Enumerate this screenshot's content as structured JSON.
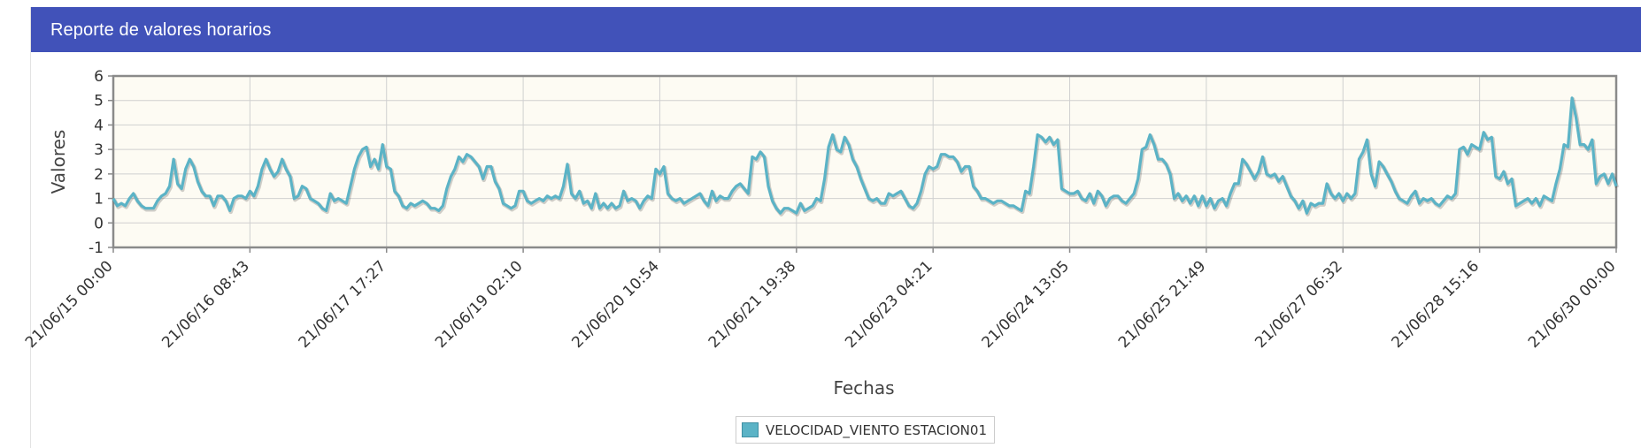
{
  "panel": {
    "title": "Reporte de valores horarios"
  },
  "colors": {
    "header": "#4152b9",
    "series": "#5bb3c6",
    "plot_background": "#fdfbf3",
    "grid": "#d0d0d0"
  },
  "chart_data": {
    "type": "line",
    "xlabel": "Fechas",
    "ylabel": "Valores",
    "ylim": [
      -1,
      6
    ],
    "yticks": [
      -1,
      0,
      1,
      2,
      3,
      4,
      5,
      6
    ],
    "x_tick_labels": [
      "21/06/15 00:00",
      "21/06/16 08:43",
      "21/06/17 17:27",
      "21/06/19 02:10",
      "21/06/20 10:54",
      "21/06/21 19:38",
      "21/06/23 04:21",
      "21/06/24 13:05",
      "21/06/25 21:49",
      "21/06/27 06:32",
      "21/06/28 15:16",
      "21/06/30 00:00"
    ],
    "x_start": "21/06/15 00:00",
    "x_end": "21/06/30 00:00",
    "x_step": "1 hour",
    "grid": true,
    "legend_position": "bottom",
    "series": [
      {
        "name": "VELOCIDAD_VIENTO ESTACION01",
        "values": [
          1.0,
          0.7,
          0.8,
          0.7,
          1.0,
          1.2,
          0.9,
          0.7,
          0.6,
          0.6,
          0.6,
          0.9,
          1.1,
          1.2,
          1.5,
          2.6,
          1.6,
          1.4,
          2.2,
          2.6,
          2.3,
          1.7,
          1.3,
          1.1,
          1.1,
          0.7,
          1.1,
          1.1,
          0.9,
          0.5,
          1.0,
          1.1,
          1.1,
          1.0,
          1.3,
          1.1,
          1.5,
          2.2,
          2.6,
          2.2,
          1.9,
          2.1,
          2.6,
          2.2,
          1.9,
          1.0,
          1.1,
          1.5,
          1.4,
          1.0,
          0.9,
          0.8,
          0.6,
          0.5,
          1.2,
          0.9,
          1.0,
          0.9,
          0.8,
          1.5,
          2.2,
          2.7,
          3.0,
          3.1,
          2.3,
          2.6,
          2.2,
          3.2,
          2.3,
          2.2,
          1.3,
          1.1,
          0.7,
          0.6,
          0.8,
          0.7,
          0.8,
          0.9,
          0.8,
          0.6,
          0.6,
          0.5,
          0.7,
          1.4,
          1.9,
          2.2,
          2.7,
          2.5,
          2.8,
          2.7,
          2.5,
          2.3,
          1.8,
          2.3,
          2.3,
          1.7,
          1.4,
          0.8,
          0.7,
          0.6,
          0.7,
          1.3,
          1.3,
          0.9,
          0.8,
          0.9,
          1.0,
          0.9,
          1.1,
          1.0,
          1.1,
          1.0,
          1.5,
          2.4,
          1.2,
          1.0,
          1.3,
          0.8,
          0.9,
          0.6,
          1.2,
          0.6,
          0.8,
          0.6,
          0.8,
          0.6,
          0.7,
          1.3,
          0.9,
          1.0,
          0.9,
          0.6,
          0.9,
          1.1,
          1.0,
          2.2,
          2.0,
          2.3,
          1.2,
          1.0,
          0.9,
          1.0,
          0.8,
          0.9,
          1.0,
          1.1,
          1.2,
          0.9,
          0.7,
          1.3,
          0.9,
          1.1,
          1.0,
          1.0,
          1.3,
          1.5,
          1.6,
          1.4,
          1.2,
          2.7,
          2.6,
          2.9,
          2.7,
          1.5,
          0.9,
          0.6,
          0.4,
          0.6,
          0.6,
          0.5,
          0.4,
          0.8,
          0.5,
          0.6,
          0.7,
          1.0,
          0.9,
          1.8,
          3.1,
          3.6,
          3.0,
          2.9,
          3.5,
          3.2,
          2.6,
          2.3,
          1.8,
          1.4,
          1.0,
          0.9,
          1.0,
          0.8,
          0.8,
          1.2,
          1.1,
          1.2,
          1.3,
          1.0,
          0.7,
          0.6,
          0.8,
          1.3,
          2.0,
          2.3,
          2.2,
          2.3,
          2.8,
          2.8,
          2.7,
          2.7,
          2.5,
          2.1,
          2.3,
          2.3,
          1.5,
          1.3,
          1.0,
          1.0,
          0.9,
          0.8,
          0.9,
          0.9,
          0.8,
          0.7,
          0.7,
          0.6,
          0.5,
          1.3,
          1.2,
          2.3,
          3.6,
          3.5,
          3.3,
          3.5,
          3.2,
          3.4,
          1.4,
          1.3,
          1.2,
          1.2,
          1.3,
          1.0,
          0.9,
          1.2,
          0.8,
          1.3,
          1.1,
          0.7,
          1.0,
          1.1,
          1.1,
          0.9,
          0.8,
          1.0,
          1.2,
          1.8,
          3.0,
          3.1,
          3.6,
          3.2,
          2.6,
          2.6,
          2.4,
          2.0,
          1.0,
          1.2,
          0.9,
          1.1,
          0.8,
          1.1,
          0.7,
          1.1,
          0.7,
          1.0,
          0.6,
          0.9,
          1.0,
          0.7,
          1.2,
          1.6,
          1.6,
          2.6,
          2.4,
          2.1,
          1.8,
          2.1,
          2.7,
          2.0,
          1.9,
          2.0,
          1.7,
          1.9,
          1.5,
          1.1,
          0.9,
          0.6,
          0.9,
          0.4,
          0.8,
          0.7,
          0.8,
          0.8,
          1.6,
          1.2,
          1.0,
          1.2,
          0.9,
          1.2,
          1.0,
          1.2,
          2.6,
          2.9,
          3.4,
          2.0,
          1.5,
          2.5,
          2.3,
          2.0,
          1.7,
          1.3,
          1.0,
          0.9,
          0.8,
          1.1,
          1.3,
          0.8,
          1.0,
          0.9,
          1.0,
          0.8,
          0.7,
          0.9,
          1.1,
          1.0,
          1.2,
          3.0,
          3.1,
          2.8,
          3.2,
          3.1,
          3.0,
          3.7,
          3.4,
          3.5,
          1.9,
          1.8,
          2.1,
          1.6,
          1.8,
          0.7,
          0.8,
          0.9,
          1.0,
          0.8,
          1.0,
          0.7,
          1.1,
          1.0,
          0.9,
          1.6,
          2.2,
          3.2,
          3.1,
          5.1,
          4.3,
          3.2,
          3.2,
          3.0,
          3.4,
          1.6,
          1.9,
          2.0,
          1.6,
          2.0,
          1.5
        ]
      }
    ]
  }
}
